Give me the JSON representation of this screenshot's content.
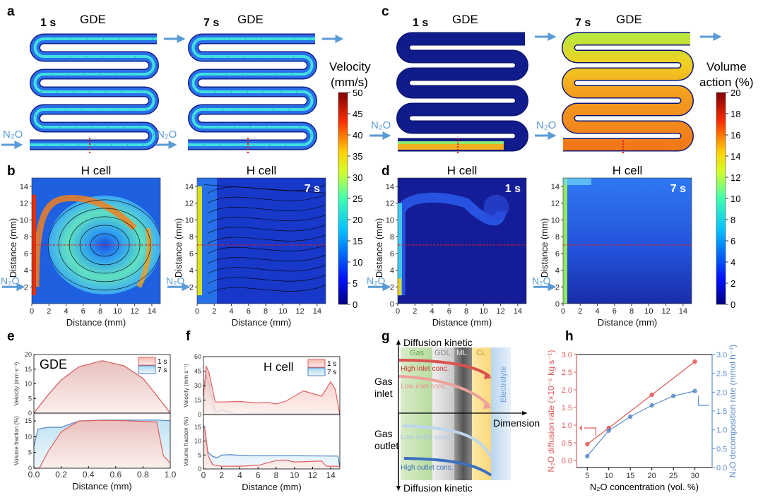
{
  "panels": {
    "a": {
      "label": "a",
      "left": {
        "time": "1 s",
        "title": "GDE"
      },
      "right": {
        "time": "7 s",
        "title": "GDE"
      },
      "inlet": "N₂O",
      "colorbar": {
        "label_line1": "Velocity",
        "label_line2": "(mm/s)",
        "ticks": [
          "0",
          "5",
          "10",
          "15",
          "20",
          "25",
          "30",
          "35",
          "40",
          "45",
          "50"
        ]
      }
    },
    "b": {
      "label": "b",
      "left": {
        "title": "H cell"
      },
      "right": {
        "title": "H cell",
        "time": "7 s"
      },
      "inlet": "N₂O"
    },
    "c": {
      "label": "c",
      "left": {
        "time": "1 s",
        "title": "GDE"
      },
      "right": {
        "time": "7 s",
        "title": "GDE"
      },
      "inlet": "N₂O",
      "colorbar": {
        "label_line1": "Volume",
        "label_line2": "action (%)",
        "ticks": [
          "0",
          "2",
          "4",
          "6",
          "8",
          "10",
          "12",
          "14",
          "16",
          "18",
          "20"
        ]
      }
    },
    "d": {
      "label": "d",
      "left": {
        "title": "H cell",
        "time": "1 s"
      },
      "right": {
        "title": "H cell",
        "time": "7 s"
      },
      "inlet": "N₂O"
    },
    "e": {
      "label": "e"
    },
    "f": {
      "label": "f"
    },
    "g": {
      "label": "g",
      "top_axis": "Diffusion kinetic",
      "bottom_axis": "Diffusion kinetic",
      "x_axis": "Dimension",
      "gas_inlet_1": "Gas",
      "gas_inlet_2": "inlet",
      "gas_outlet_1": "Gas",
      "gas_outlet_2": "outlet",
      "layers": [
        "Gas",
        "GDL",
        "ML",
        "CL"
      ],
      "electrolyte": "Electrolyte",
      "arrows": [
        "High inlet conc.",
        "Low inlet conc.",
        "Low outlet conc.",
        "High outlet conc."
      ]
    },
    "h": {
      "label": "h"
    }
  },
  "colors": {
    "s1": "#e06060",
    "s7": "#4f86c6",
    "red": "#e05a5a",
    "blue": "#5b8dc9",
    "arrow": "#5b9bd5"
  },
  "chart_data": [
    {
      "id": "b",
      "type": "heatmap",
      "xlabel": "Distance (mm)",
      "ylabel": "Distance (mm)",
      "xlim": [
        0,
        15
      ],
      "ylim": [
        0,
        15
      ],
      "x_ticks": [
        "0",
        "2",
        "4",
        "6",
        "8",
        "10",
        "12",
        "14"
      ],
      "y_ticks": [
        "2",
        "4",
        "6",
        "8",
        "10",
        "12",
        "14"
      ],
      "dashed_line_y": 7
    },
    {
      "id": "d",
      "type": "heatmap",
      "xlabel": "Distance (mm)",
      "ylabel": "Distance (mm)",
      "xlim": [
        0,
        15
      ],
      "ylim": [
        0,
        15
      ],
      "x_ticks": [
        "0",
        "2",
        "4",
        "6",
        "8",
        "10",
        "12",
        "14"
      ],
      "y_ticks": [
        "0",
        "2",
        "4",
        "6",
        "8",
        "10",
        "12",
        "14"
      ],
      "dashed_line_y": 7
    },
    {
      "id": "e",
      "type": "area",
      "title": "GDE",
      "xlabel": "Distance (mm)",
      "xlim": [
        0,
        1
      ],
      "x_ticks": [
        "0.0",
        "0.2",
        "0.4",
        "0.6",
        "0.8",
        "1.0"
      ],
      "legend": [
        "1 s",
        "7 s"
      ],
      "legend_position": "top-right",
      "top": {
        "ylabel": "Velocity (mm s⁻¹)",
        "ylim": [
          0,
          20
        ],
        "y_ticks": [
          "0",
          "5",
          "10",
          "15",
          "20"
        ],
        "series": [
          {
            "name": "1 s",
            "x": [
              0,
              0.1,
              0.2,
              0.33,
              0.5,
              0.66,
              0.8,
              0.9,
              1.0
            ],
            "y": [
              0,
              6,
              11.3,
              15.8,
              17.9,
              16.2,
              11.9,
              6.1,
              0
            ]
          },
          {
            "name": "7 s",
            "x": [
              0,
              0.1,
              0.2,
              0.33,
              0.5,
              0.66,
              0.8,
              0.9,
              1.0
            ],
            "y": [
              0,
              6,
              11.3,
              15.8,
              17.8,
              16.0,
              11.7,
              6,
              0
            ]
          }
        ]
      },
      "bottom": {
        "ylabel": "Volume fraction (%)",
        "ylim": [
          0,
          17.5
        ],
        "y_ticks": [
          "0",
          "5",
          "10",
          "15"
        ],
        "series": [
          {
            "name": "1 s",
            "x": [
              0,
              0.04,
              0.1,
              0.2,
              0.33,
              0.5,
              0.66,
              0.9,
              0.95,
              1.0
            ],
            "y": [
              0,
              0,
              5,
              11.6,
              15,
              15.2,
              15.1,
              14.7,
              4,
              1.6
            ]
          },
          {
            "name": "7 s",
            "x": [
              0,
              0.03,
              0.1,
              0.2,
              0.33,
              0.5,
              0.66,
              0.9,
              1.0
            ],
            "y": [
              7,
              12.4,
              13,
              13,
              15,
              15.3,
              15.3,
              15.3,
              15.1
            ]
          }
        ]
      }
    },
    {
      "id": "f",
      "type": "area",
      "title": "H cell",
      "xlabel": "Distance (mm)",
      "xlim": [
        0,
        15
      ],
      "x_ticks": [
        "0",
        "2",
        "4",
        "6",
        "8",
        "10",
        "12",
        "14"
      ],
      "legend": [
        "1 s",
        "7 s"
      ],
      "legend_position": "top-right",
      "top": {
        "ylabel": "Velocity (mm s⁻¹)",
        "ylim": [
          0,
          60
        ],
        "y_ticks": [
          "0",
          "15",
          "30",
          "45",
          "60"
        ],
        "series": [
          {
            "name": "1 s",
            "x": [
              0,
              0.3,
              0.6,
              1.3,
              2,
              4,
              6,
              7,
              8,
              9,
              11,
              13,
              14,
              14.5,
              15
            ],
            "y": [
              20,
              50,
              44,
              13,
              13,
              13.5,
              12,
              12.5,
              11,
              13.5,
              24.5,
              19,
              34,
              26,
              0
            ]
          },
          {
            "name": "7 s",
            "x": [
              0,
              0.3,
              0.5,
              1.3,
              2,
              3,
              4,
              5,
              15
            ],
            "y": [
              10,
              41,
              36,
              2,
              5,
              2,
              0.3,
              1.2,
              1
            ]
          }
        ]
      },
      "bottom": {
        "ylabel": "Volume fraction (%)",
        "ylim": [
          0,
          19.5
        ],
        "y_ticks": [
          "0",
          "5",
          "10",
          "15"
        ],
        "series": [
          {
            "name": "1 s",
            "x": [
              0,
              0.2,
              0.5,
              1,
              2,
              4,
              6,
              8,
              9,
              10,
              13,
              13.5,
              15
            ],
            "y": [
              15,
              14,
              5,
              1.5,
              1,
              1,
              1.3,
              3,
              3.2,
              2.5,
              2.8,
              1,
              1
            ]
          },
          {
            "name": "7 s",
            "x": [
              0,
              0.2,
              0.5,
              1,
              1.5,
              2,
              3,
              5,
              8,
              10,
              14.8,
              15
            ],
            "y": [
              16,
              11,
              6,
              4.5,
              4,
              5,
              5.1,
              4.7,
              4.7,
              4.7,
              4.6,
              0.5
            ]
          }
        ]
      }
    },
    {
      "id": "h",
      "type": "line",
      "xlabel": "N₂O concentration (vol. %)",
      "xlim": [
        2.5,
        34
      ],
      "x_ticks": [
        5,
        10,
        15,
        20,
        25,
        30
      ],
      "ylabel_left": "N₂O diffusion rate (×10⁻⁶ kg s⁻¹)",
      "ylim_left": [
        -0.2,
        3.0
      ],
      "y_ticks_left": [
        "0.0",
        "0.5",
        "1.0",
        "1.5",
        "2.0",
        "2.5",
        "3.0"
      ],
      "ylabel_right": "N₂O decomposition rate (mmol h⁻¹)",
      "ylim_right": [
        0,
        3.0
      ],
      "y_ticks_right": [
        "0.0",
        "0.5",
        "1.0",
        "1.5",
        "2.0",
        "2.5",
        "3.0"
      ],
      "series": [
        {
          "name": "N₂O diffusion rate",
          "axis": "left",
          "x": [
            5,
            10,
            20,
            30
          ],
          "y": [
            0.46,
            0.92,
            1.86,
            2.8
          ]
        },
        {
          "name": "N₂O decomposition rate",
          "axis": "right",
          "x": [
            5,
            10,
            15,
            20,
            25,
            30
          ],
          "y": [
            0.3,
            0.98,
            1.35,
            1.65,
            1.9,
            2.03
          ]
        }
      ]
    }
  ]
}
